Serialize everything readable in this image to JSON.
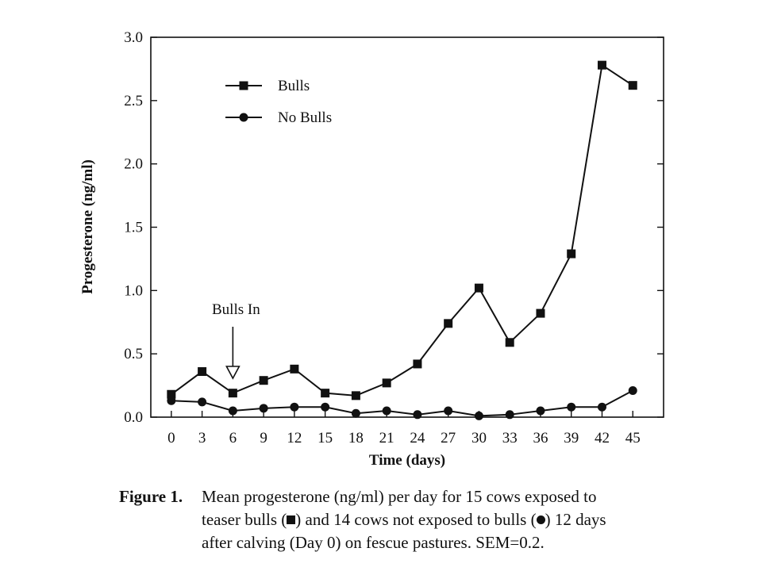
{
  "chart_data": {
    "type": "line",
    "xlabel": "Time (days)",
    "ylabel": "Progesterone (ng/ml)",
    "x": [
      0,
      3,
      6,
      9,
      12,
      15,
      18,
      21,
      24,
      27,
      30,
      33,
      36,
      39,
      42,
      45
    ],
    "xlim": [
      -2,
      48
    ],
    "ylim": [
      0,
      3.0
    ],
    "yticks": [
      "0.0",
      "0.5",
      "1.0",
      "1.5",
      "2.0",
      "2.5",
      "3.0"
    ],
    "grid": false,
    "legend_position": "top-left",
    "series": [
      {
        "name": "Bulls",
        "marker": "square",
        "values": [
          0.18,
          0.36,
          0.19,
          0.29,
          0.38,
          0.19,
          0.17,
          0.27,
          0.42,
          0.74,
          1.02,
          0.59,
          0.82,
          1.29,
          2.78,
          2.62
        ]
      },
      {
        "name": "No Bulls",
        "marker": "circle",
        "values": [
          0.13,
          0.12,
          0.05,
          0.07,
          0.08,
          0.08,
          0.03,
          0.05,
          0.02,
          0.05,
          0.01,
          0.02,
          0.05,
          0.08,
          0.08,
          0.21
        ]
      }
    ],
    "annotations": [
      {
        "text": "Bulls In",
        "x": 6
      }
    ]
  },
  "caption": {
    "label": "Figure 1.",
    "line1": "Mean progesterone (ng/ml) per day for 15 cows exposed to",
    "line2_a": "teaser bulls (",
    "line2_b": ") and 14 cows not exposed to bulls (",
    "line2_c": ") 12 days",
    "line3": "after calving (Day 0) on fescue pastures. SEM=0.2."
  }
}
